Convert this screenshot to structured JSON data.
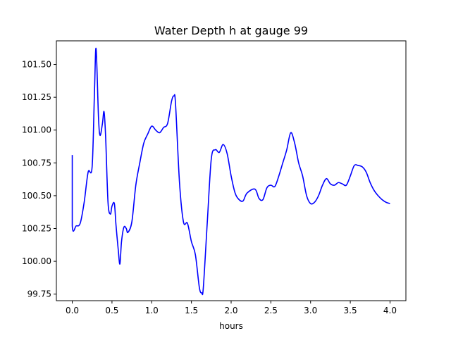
{
  "chart_data": {
    "type": "line",
    "title": "Water Depth h at gauge 99",
    "xlabel": "hours",
    "ylabel": "",
    "xlim": [
      -0.2,
      4.2
    ],
    "ylim": [
      99.7,
      101.68
    ],
    "grid": false,
    "xticks": [
      0.0,
      0.5,
      1.0,
      1.5,
      2.0,
      2.5,
      3.0,
      3.5,
      4.0
    ],
    "xtick_labels": [
      "0.0",
      "0.5",
      "1.0",
      "1.5",
      "2.0",
      "2.5",
      "3.0",
      "3.5",
      "4.0"
    ],
    "yticks": [
      99.75,
      100.0,
      100.25,
      100.5,
      100.75,
      101.0,
      101.25,
      101.5
    ],
    "ytick_labels": [
      "99.75",
      "100.00",
      "100.25",
      "100.50",
      "100.75",
      "101.00",
      "101.25",
      "101.50"
    ],
    "series": [
      {
        "color": "#0000ff",
        "x": [
          0.0,
          0.0,
          0.05,
          0.1,
          0.15,
          0.2,
          0.25,
          0.28,
          0.3,
          0.33,
          0.35,
          0.38,
          0.4,
          0.42,
          0.45,
          0.48,
          0.5,
          0.53,
          0.55,
          0.58,
          0.6,
          0.62,
          0.65,
          0.68,
          0.7,
          0.75,
          0.8,
          0.85,
          0.9,
          0.95,
          1.0,
          1.05,
          1.1,
          1.15,
          1.2,
          1.25,
          1.28,
          1.3,
          1.35,
          1.4,
          1.45,
          1.5,
          1.55,
          1.6,
          1.63,
          1.65,
          1.7,
          1.75,
          1.8,
          1.85,
          1.9,
          1.95,
          2.0,
          2.05,
          2.1,
          2.15,
          2.2,
          2.3,
          2.35,
          2.4,
          2.45,
          2.5,
          2.55,
          2.6,
          2.65,
          2.7,
          2.75,
          2.8,
          2.85,
          2.9,
          2.95,
          3.0,
          3.05,
          3.1,
          3.15,
          3.2,
          3.25,
          3.3,
          3.35,
          3.4,
          3.45,
          3.5,
          3.55,
          3.6,
          3.65,
          3.7,
          3.75,
          3.8,
          3.85,
          3.9,
          3.95,
          4.0
        ],
        "y": [
          100.81,
          100.27,
          100.27,
          100.29,
          100.45,
          100.68,
          100.72,
          101.3,
          101.62,
          101.1,
          100.96,
          101.05,
          101.14,
          100.95,
          100.45,
          100.36,
          100.42,
          100.44,
          100.28,
          100.08,
          99.98,
          100.15,
          100.26,
          100.25,
          100.22,
          100.3,
          100.58,
          100.75,
          100.9,
          100.97,
          101.03,
          101.0,
          100.98,
          101.02,
          101.05,
          101.22,
          101.26,
          101.2,
          100.6,
          100.3,
          100.29,
          100.15,
          100.05,
          99.8,
          99.76,
          99.8,
          100.3,
          100.78,
          100.85,
          100.83,
          100.89,
          100.82,
          100.65,
          100.52,
          100.47,
          100.46,
          100.52,
          100.55,
          100.48,
          100.47,
          100.56,
          100.58,
          100.57,
          100.65,
          100.75,
          100.85,
          100.98,
          100.9,
          100.75,
          100.65,
          100.5,
          100.44,
          100.45,
          100.5,
          100.58,
          100.63,
          100.59,
          100.58,
          100.6,
          100.59,
          100.58,
          100.65,
          100.73,
          100.73,
          100.72,
          100.68,
          100.6,
          100.54,
          100.5,
          100.47,
          100.45,
          100.44
        ]
      }
    ]
  }
}
